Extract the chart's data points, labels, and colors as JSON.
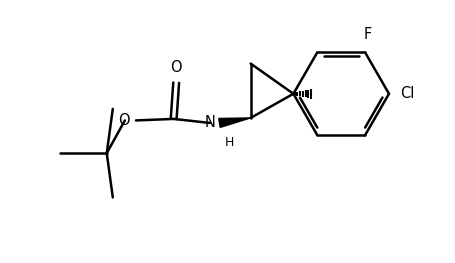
{
  "background_color": "#ffffff",
  "line_color": "#000000",
  "line_width": 1.8,
  "font_size": 10.5,
  "fig_width": 4.56,
  "fig_height": 2.63,
  "dpi": 100,
  "xlim": [
    0,
    9.0
  ],
  "ylim": [
    0,
    5.2
  ]
}
